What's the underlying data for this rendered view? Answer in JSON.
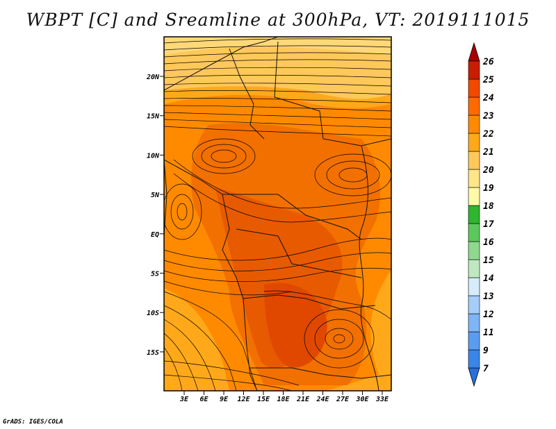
{
  "title": "WBPT [C] and Sreamline at 300hPa, VT: 2019111015",
  "credit": "GrADS: IGES/COLA",
  "map": {
    "lon_labels": [
      "3E",
      "6E",
      "9E",
      "12E",
      "15E",
      "18E",
      "21E",
      "24E",
      "27E",
      "30E",
      "33E"
    ],
    "lat_labels": [
      "20N",
      "15N",
      "10N",
      "5N",
      "EQ",
      "5S",
      "10S",
      "15S"
    ]
  },
  "colorbar": {
    "labels": [
      "7",
      "9",
      "11",
      "12",
      "13",
      "14",
      "15",
      "16",
      "17",
      "18",
      "19",
      "20",
      "21",
      "22",
      "23",
      "24",
      "25",
      "26"
    ],
    "colors": [
      "#2a6fdb",
      "#3a86e8",
      "#5a9cf0",
      "#7fb4f5",
      "#a6ccf8",
      "#d6ecfb",
      "#bfe8c0",
      "#90d890",
      "#5cc85c",
      "#2fb52f",
      "#fffaa8",
      "#ffe68a",
      "#ffc85a",
      "#ffa91a",
      "#ff8a00",
      "#ff6a00",
      "#f04a00",
      "#c81e00",
      "#a80000"
    ]
  }
}
